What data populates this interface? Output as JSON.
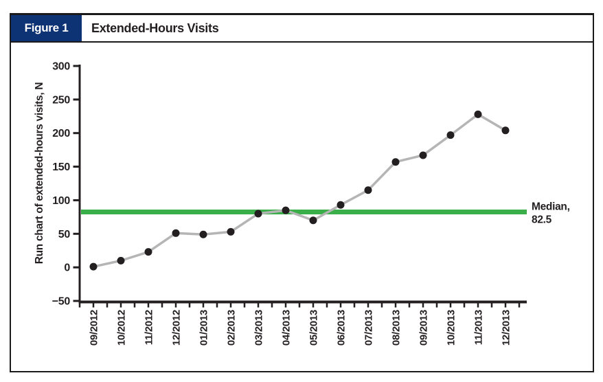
{
  "figure": {
    "label": "Figure 1",
    "title": "Extended-Hours Visits"
  },
  "chart_data": {
    "type": "line",
    "title": "Extended-Hours Visits",
    "xlabel": "",
    "ylabel": "Run chart of extended-hours visits, N",
    "categories": [
      "09/2012",
      "10/2012",
      "11/2012",
      "12/2012",
      "01/2013",
      "02/2013",
      "03/2013",
      "04/2013",
      "05/2013",
      "06/2013",
      "07/2013",
      "08/2013",
      "09/2013",
      "10/2013",
      "11/2013",
      "12/2013"
    ],
    "series": [
      {
        "name": "Extended-hours visits",
        "values": [
          1,
          10,
          23,
          51,
          49,
          53,
          80,
          85,
          70,
          93,
          115,
          157,
          167,
          197,
          228,
          204
        ]
      }
    ],
    "ylim": [
      -50,
      300
    ],
    "yticks": [
      {
        "value": 300,
        "label": "300"
      },
      {
        "value": 250,
        "label": "250"
      },
      {
        "value": 200,
        "label": "200"
      },
      {
        "value": 150,
        "label": "150"
      },
      {
        "value": 100,
        "label": "100"
      },
      {
        "value": 50,
        "label": "50"
      },
      {
        "value": 0,
        "label": "0"
      },
      {
        "value": -50,
        "label": "−50"
      }
    ],
    "median": {
      "value": 82.5,
      "label_line1": "Median,",
      "label_line2": "82.5"
    },
    "grid": false,
    "legend": "none",
    "marker": "circle",
    "colors": {
      "figure_label_bg": "#0e3374",
      "series_line": "#b5b5b5",
      "marker": "#231f20",
      "median_line": "#3aae49",
      "axis": "#231f20",
      "text": "#231f20"
    }
  }
}
